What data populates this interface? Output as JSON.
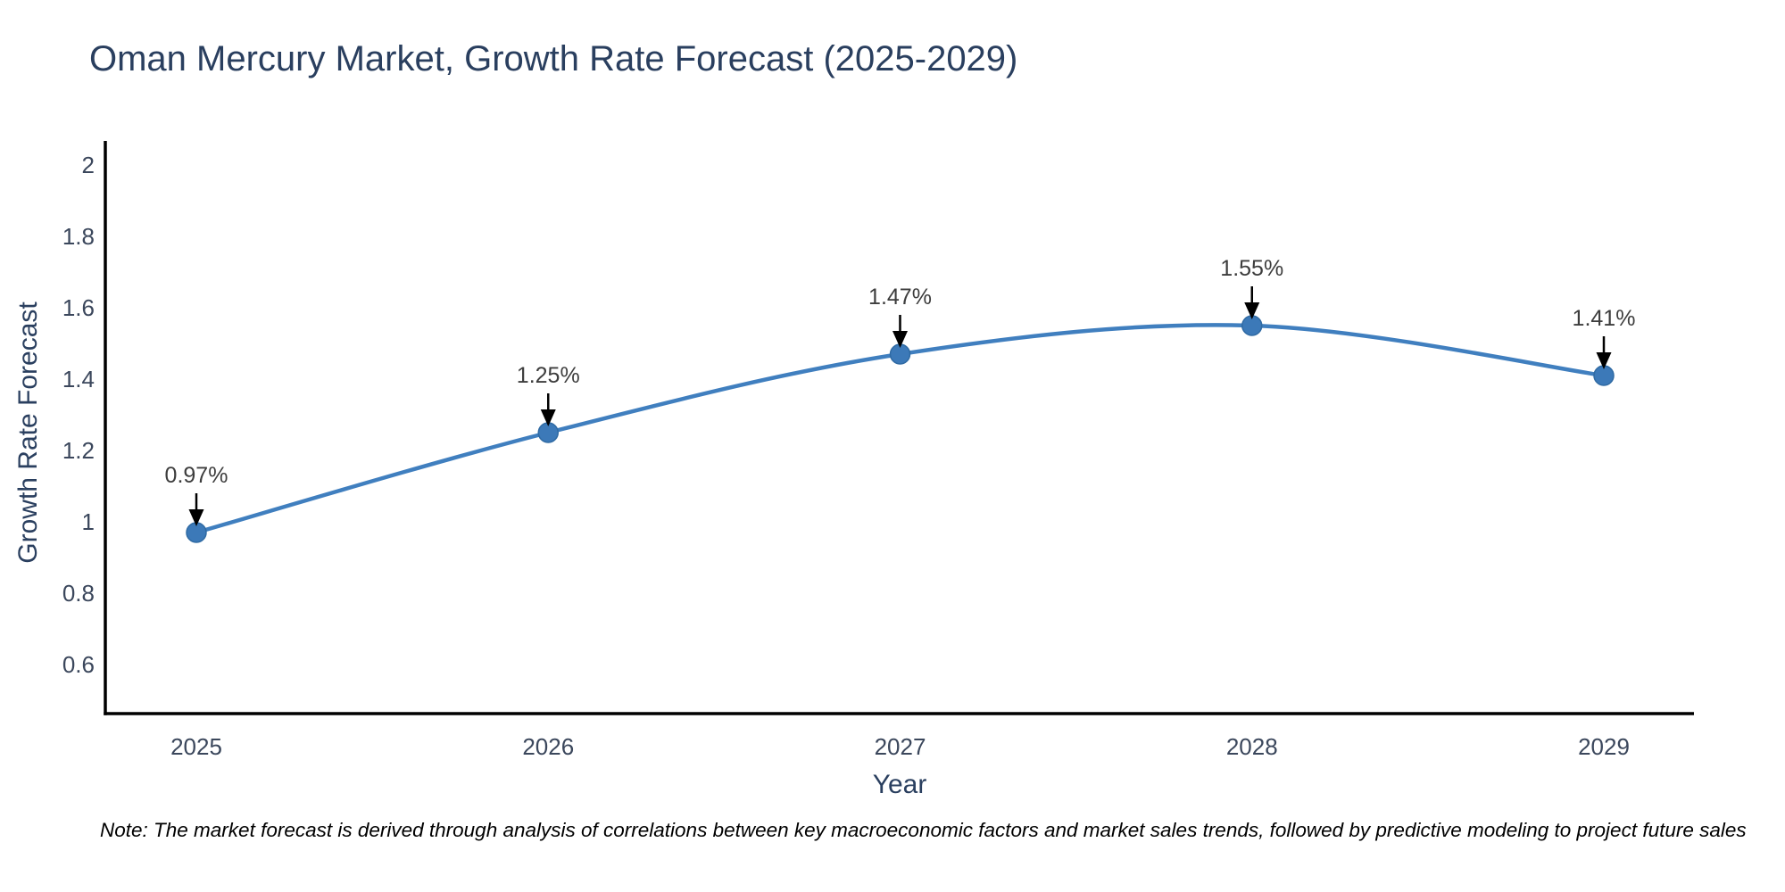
{
  "title": "Oman Mercury Market, Growth Rate Forecast (2025-2029)",
  "note": "Note: The market forecast is derived through analysis of correlations between key macroeconomic factors and market sales trends, followed by predictive modeling to project future sales",
  "colors": {
    "line": "#407fbf",
    "marker_fill": "#3c79b8",
    "marker_edge": "#2f6aa3",
    "arrow": "#000000",
    "axis": "#000000",
    "title_text": "#2a3f5f",
    "tick_text": "#3b475c",
    "annotation_text": "#3d3d3d"
  },
  "chart_data": {
    "type": "line",
    "title": "Oman Mercury Market, Growth Rate Forecast (2025-2029)",
    "xlabel": "Year",
    "ylabel": "Growth Rate Forecast",
    "x": [
      2025,
      2026,
      2027,
      2028,
      2029
    ],
    "series": [
      {
        "name": "Growth Rate Forecast",
        "values": [
          0.97,
          1.25,
          1.47,
          1.55,
          1.41
        ],
        "point_labels": [
          "0.97%",
          "1.25%",
          "1.47%",
          "1.55%",
          "1.41%"
        ]
      }
    ],
    "y_ticks": [
      0.6,
      0.8,
      1,
      1.2,
      1.4,
      1.6,
      1.8,
      2
    ],
    "ylim": [
      0.42,
      2.06
    ],
    "line_shape": "spline",
    "grid": false,
    "legend_position": "none",
    "annotations": "black arrows pointing down at each data point with percentage labels above"
  }
}
